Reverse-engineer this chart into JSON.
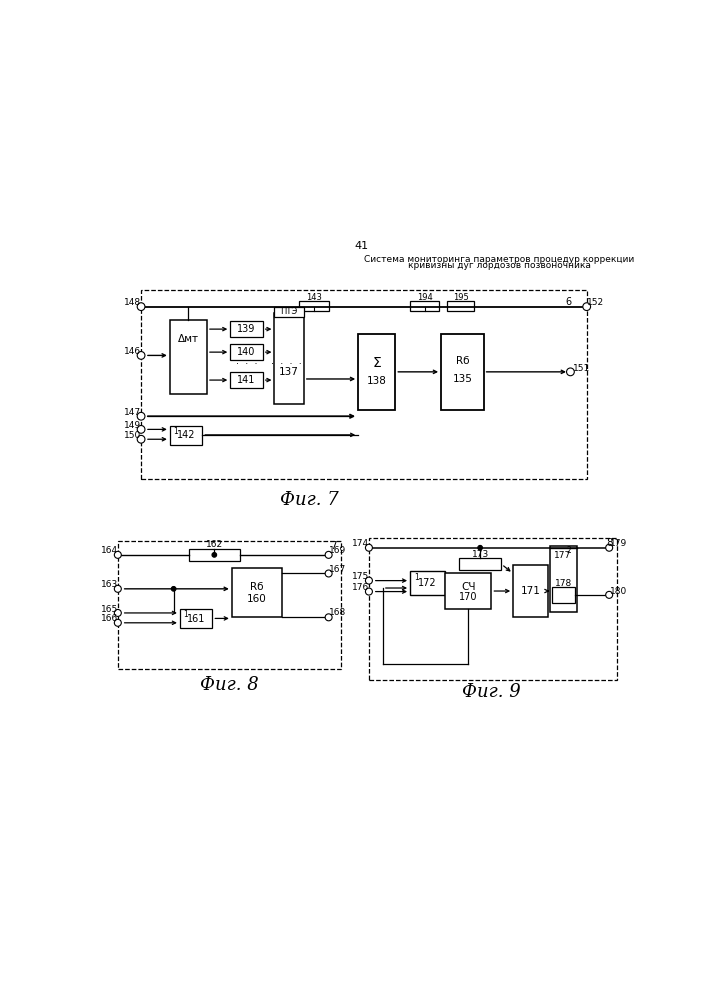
{
  "page_number": "41",
  "header_line1": "Система мониторинга параметров процедур коррекции",
  "header_line2": "кривизны дуг лордозов позвоночника",
  "fig7_caption": "Фиг. 7",
  "fig8_caption": "Фиг. 8",
  "fig9_caption": "Фиг. 9",
  "bg_color": "#ffffff"
}
